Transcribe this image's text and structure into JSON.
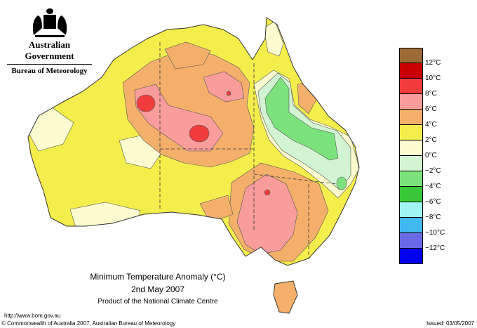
{
  "header": {
    "government": "Australian Government",
    "bureau": "Bureau of Meteorology"
  },
  "title": {
    "line1": "Minimum Temperature Anomaly (°C)",
    "line2": "2nd May 2007",
    "line3": "Product of the National Climate Centre"
  },
  "legend": [
    {
      "label": "12°C",
      "color": "#9c6a35"
    },
    {
      "label": "10°C",
      "color": "#c80000"
    },
    {
      "label": "8°C",
      "color": "#f03c3c"
    },
    {
      "label": "6°C",
      "color": "#f89c9c"
    },
    {
      "label": "4°C",
      "color": "#f4b06a"
    },
    {
      "label": "2°C",
      "color": "#f4ee4c"
    },
    {
      "label": "0°C",
      "color": "#fcfcd0"
    },
    {
      "label": "−2°C",
      "color": "#d2f4d2"
    },
    {
      "label": "−4°C",
      "color": "#7ce27c"
    },
    {
      "label": "−6°C",
      "color": "#38c838"
    },
    {
      "label": "−8°C",
      "color": "#a0f4f4"
    },
    {
      "label": "−10°C",
      "color": "#40b8f0"
    },
    {
      "label": "−12°C",
      "color": "#6a6ae6"
    }
  ],
  "legend_bottom_color": "#0000f0",
  "footer": {
    "url": "http://www.bom.gov.au",
    "copyright": "© Commonwealth of Australia 2007, Australian Bureau of Meteorology",
    "issued": "Issued: 03/05/2007"
  }
}
